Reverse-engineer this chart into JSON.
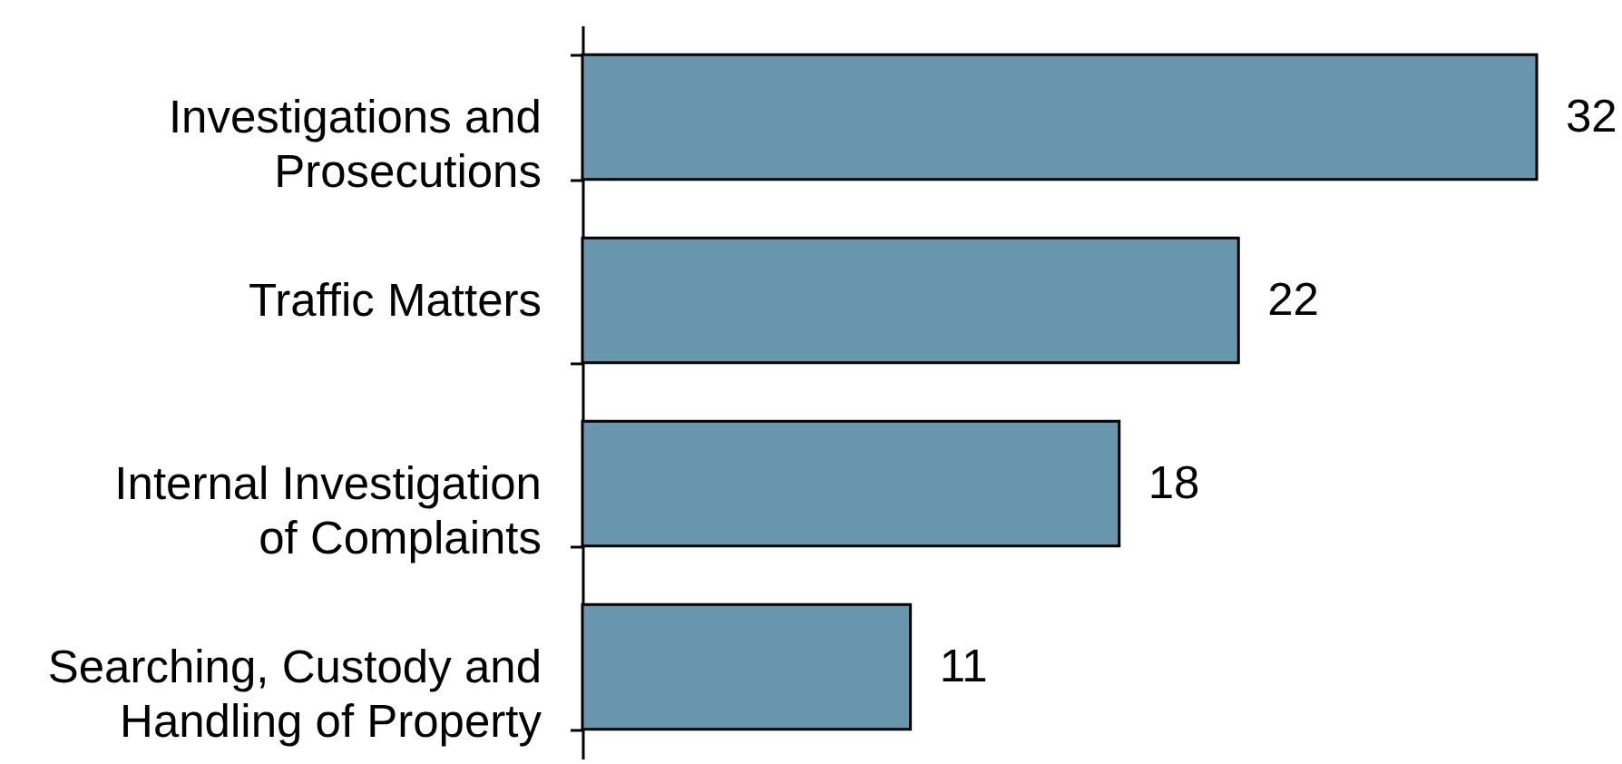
{
  "chart_data": {
    "type": "bar",
    "orientation": "horizontal",
    "categories": [
      "Investigations and\nProsecutions",
      "Traffic Matters",
      "Internal Investigation\nof Complaints",
      "Searching, Custody and\nHandling of Property"
    ],
    "values": [
      32,
      22,
      18,
      11
    ],
    "color": "#6897ad",
    "data_labels": true
  }
}
